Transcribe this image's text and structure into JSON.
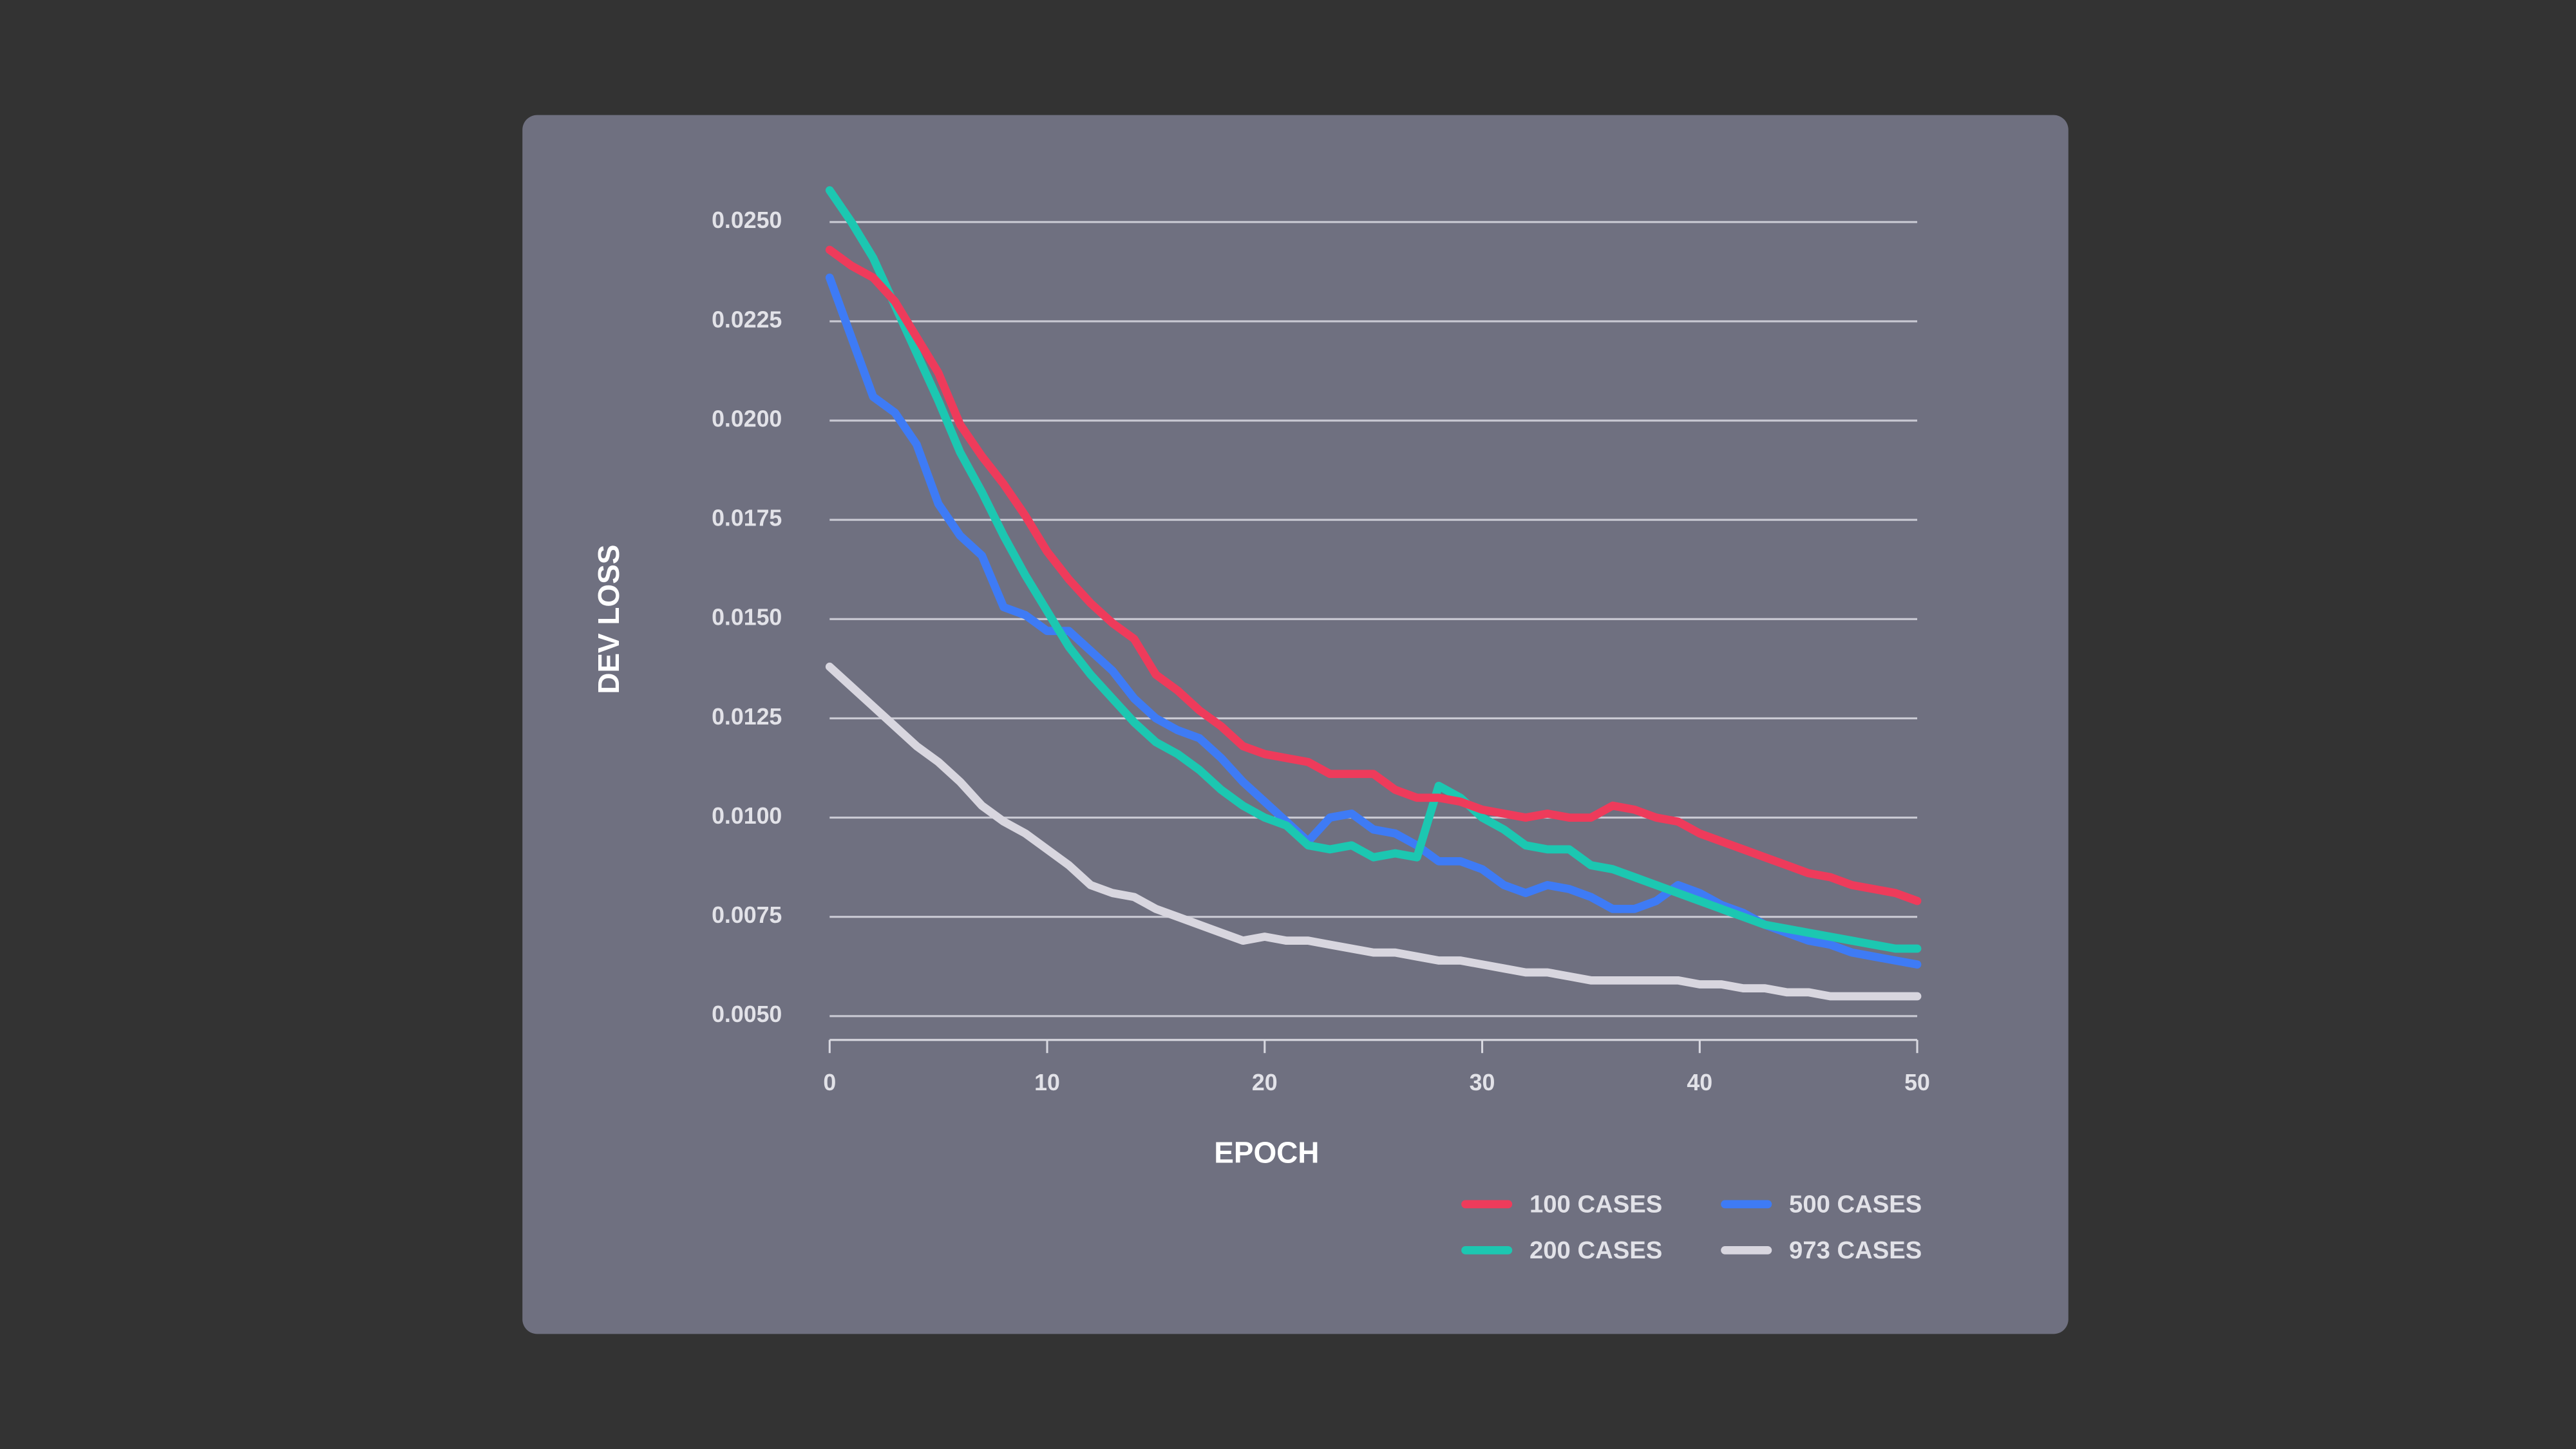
{
  "chart_data": {
    "type": "line",
    "xlabel": "EPOCH",
    "ylabel": "DEV LOSS",
    "x": [
      0,
      1,
      2,
      3,
      4,
      5,
      6,
      7,
      8,
      9,
      10,
      11,
      12,
      13,
      14,
      15,
      16,
      17,
      18,
      19,
      20,
      21,
      22,
      23,
      24,
      25,
      26,
      27,
      28,
      29,
      30,
      31,
      32,
      33,
      34,
      35,
      36,
      37,
      38,
      39,
      40,
      41,
      42,
      43,
      44,
      45,
      46,
      47,
      48,
      49,
      50
    ],
    "xlim": [
      0,
      50
    ],
    "xticks": [
      0,
      10,
      20,
      30,
      40,
      50
    ],
    "ylim": [
      0.0044,
      0.026
    ],
    "yticks": [
      {
        "value": 0.005,
        "label": "0.0050"
      },
      {
        "value": 0.0075,
        "label": "0.0075"
      },
      {
        "value": 0.01,
        "label": "0.0100"
      },
      {
        "value": 0.0125,
        "label": "0.0125"
      },
      {
        "value": 0.015,
        "label": "0.0150"
      },
      {
        "value": 0.0175,
        "label": "0.0175"
      },
      {
        "value": 0.02,
        "label": "0.0200"
      },
      {
        "value": 0.0225,
        "label": "0.0225"
      },
      {
        "value": 0.025,
        "label": "0.0250"
      }
    ],
    "grid": true,
    "legend": "bottom-right",
    "series": [
      {
        "name": "100 CASES",
        "color": "#ee3b5b",
        "values": [
          0.0243,
          0.0239,
          0.0236,
          0.023,
          0.0221,
          0.0212,
          0.0199,
          0.0191,
          0.0184,
          0.0176,
          0.0167,
          0.016,
          0.0154,
          0.0149,
          0.0145,
          0.0136,
          0.0132,
          0.0127,
          0.0123,
          0.0118,
          0.0116,
          0.0115,
          0.0114,
          0.0111,
          0.0111,
          0.0111,
          0.0107,
          0.0105,
          0.0105,
          0.0104,
          0.0102,
          0.0101,
          0.01,
          0.0101,
          0.01,
          0.01,
          0.0103,
          0.0102,
          0.01,
          0.0099,
          0.0096,
          0.0094,
          0.0092,
          0.009,
          0.0088,
          0.0086,
          0.0085,
          0.0083,
          0.0082,
          0.0081,
          0.0079
        ]
      },
      {
        "name": "200 CASES",
        "color": "#1cc7b1",
        "values": [
          0.0258,
          0.025,
          0.0241,
          0.0229,
          0.0217,
          0.0205,
          0.0192,
          0.0182,
          0.0171,
          0.0161,
          0.0152,
          0.0143,
          0.0136,
          0.013,
          0.0124,
          0.0119,
          0.0116,
          0.0112,
          0.0107,
          0.0103,
          0.01,
          0.0098,
          0.0093,
          0.0092,
          0.0093,
          0.009,
          0.0091,
          0.009,
          0.0108,
          0.0105,
          0.01,
          0.0097,
          0.0093,
          0.0092,
          0.0092,
          0.0088,
          0.0087,
          0.0085,
          0.0083,
          0.0081,
          0.0079,
          0.0077,
          0.0075,
          0.0073,
          0.0072,
          0.0071,
          0.007,
          0.0069,
          0.0068,
          0.0067,
          0.0067
        ]
      },
      {
        "name": "500 CASES",
        "color": "#3e7bf5",
        "values": [
          0.0236,
          0.0221,
          0.0206,
          0.0202,
          0.0194,
          0.0179,
          0.0171,
          0.0166,
          0.0153,
          0.0151,
          0.0147,
          0.0147,
          0.0142,
          0.0137,
          0.013,
          0.0125,
          0.0122,
          0.012,
          0.0115,
          0.0109,
          0.0104,
          0.0099,
          0.0094,
          0.01,
          0.0101,
          0.0097,
          0.0096,
          0.0093,
          0.0089,
          0.0089,
          0.0087,
          0.0083,
          0.0081,
          0.0083,
          0.0082,
          0.008,
          0.0077,
          0.0077,
          0.0079,
          0.0083,
          0.0081,
          0.0078,
          0.0076,
          0.0073,
          0.0071,
          0.0069,
          0.0068,
          0.0066,
          0.0065,
          0.0064,
          0.0063
        ]
      },
      {
        "name": "973 CASES",
        "color": "#d8d6df",
        "values": [
          0.0138,
          0.0133,
          0.0128,
          0.0123,
          0.0118,
          0.0114,
          0.0109,
          0.0103,
          0.0099,
          0.0096,
          0.0092,
          0.0088,
          0.0083,
          0.0081,
          0.008,
          0.0077,
          0.0075,
          0.0073,
          0.0071,
          0.0069,
          0.007,
          0.0069,
          0.0069,
          0.0068,
          0.0067,
          0.0066,
          0.0066,
          0.0065,
          0.0064,
          0.0064,
          0.0063,
          0.0062,
          0.0061,
          0.0061,
          0.006,
          0.0059,
          0.0059,
          0.0059,
          0.0059,
          0.0059,
          0.0058,
          0.0058,
          0.0057,
          0.0057,
          0.0056,
          0.0056,
          0.0055,
          0.0055,
          0.0055,
          0.0055,
          0.0055
        ]
      }
    ]
  }
}
